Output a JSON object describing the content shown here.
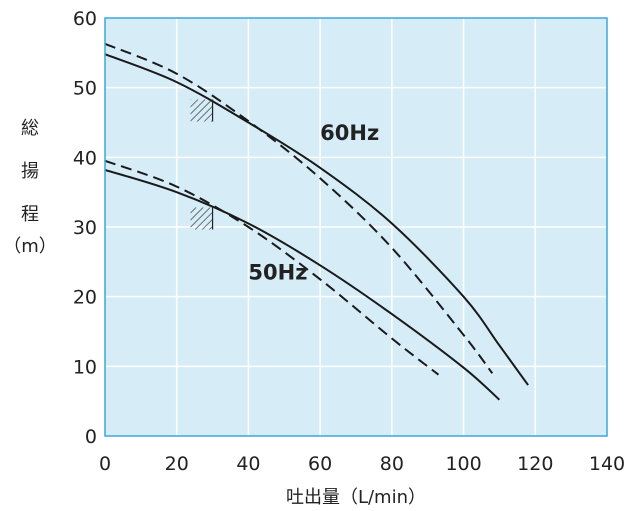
{
  "chart_data": {
    "type": "line",
    "title": "",
    "xlabel": "吐出量（L/min）",
    "ylabel_chars": [
      "総",
      "揚",
      "程",
      "（m）"
    ],
    "xlim": [
      0,
      140
    ],
    "ylim": [
      0,
      60
    ],
    "x_ticks": [
      "0",
      "20",
      "40",
      "60",
      "80",
      "100",
      "120",
      "140"
    ],
    "y_ticks": [
      "0",
      "10",
      "20",
      "30",
      "40",
      "50",
      "60"
    ],
    "grid": true,
    "background_color": "#d6edf8",
    "grid_color": "#ffffff",
    "frame_color": "#3da5d9",
    "line_color": "#1a1a1a",
    "series": [
      {
        "name": "60Hz",
        "style": "solid",
        "x": [
          0,
          20,
          40,
          60,
          80,
          100,
          110,
          118
        ],
        "y": [
          54.8,
          50.8,
          45.0,
          38.5,
          30.5,
          20.0,
          13.0,
          7.3
        ]
      },
      {
        "name": "60Hz",
        "style": "dashed",
        "x": [
          0,
          20,
          40,
          60,
          80,
          100,
          108
        ],
        "y": [
          56.3,
          52.0,
          45.2,
          37.0,
          27.0,
          14.5,
          9.0
        ]
      },
      {
        "name": "50Hz",
        "style": "solid",
        "x": [
          0,
          20,
          40,
          60,
          80,
          100,
          110
        ],
        "y": [
          38.2,
          35.0,
          30.5,
          24.5,
          17.5,
          9.8,
          5.2
        ]
      },
      {
        "name": "50Hz",
        "style": "dashed",
        "x": [
          0,
          20,
          40,
          60,
          80,
          93
        ],
        "y": [
          39.5,
          35.8,
          30.0,
          22.5,
          14.0,
          8.8
        ]
      }
    ],
    "labels": [
      {
        "text": "60Hz",
        "x": 60,
        "y": 42.5
      },
      {
        "text": "50Hz",
        "x": 40,
        "y": 22.5
      }
    ],
    "hatch_markers": [
      {
        "x": 30,
        "y": 48.3
      },
      {
        "x": 30,
        "y": 32.8
      }
    ]
  }
}
